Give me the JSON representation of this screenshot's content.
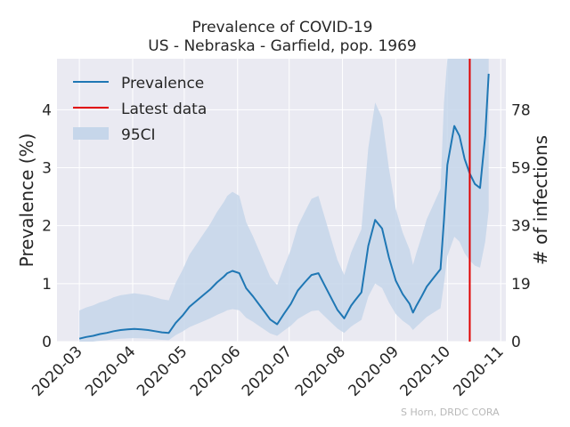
{
  "chart_data": {
    "type": "line",
    "title": "Prevalence of COVID-19",
    "subtitle": "US - Nebraska - Garfield, pop. 1969",
    "ylabel": "Prevalence (%)",
    "y2label": "# of infections",
    "xlim": [
      "2020-02-17",
      "2020-11-04"
    ],
    "ylim": [
      0,
      4.88
    ],
    "yticks": [
      0,
      1,
      2,
      3,
      4
    ],
    "y2ticks": [
      0,
      19,
      39,
      59,
      78
    ],
    "xticks": [
      "2020-03",
      "2020-04",
      "2020-05",
      "2020-06",
      "2020-07",
      "2020-08",
      "2020-09",
      "2020-10",
      "2020-11"
    ],
    "x_tick_dates": [
      "2020-03-01",
      "2020-04-01",
      "2020-05-01",
      "2020-06-01",
      "2020-07-01",
      "2020-08-01",
      "2020-09-01",
      "2020-10-01",
      "2020-11-01"
    ],
    "latest_data_date": "2020-10-14",
    "latest_data_color": "#e00000",
    "line_color": "#1f77b4",
    "band_color": "#c6d6ea",
    "background_color": "#eaeaf2",
    "grid": true,
    "legend_position": "top-left",
    "legend": [
      "Prevalence",
      "Latest data",
      "95CI"
    ],
    "credit": "S Horn, DRDC CORA",
    "series": [
      {
        "name": "Prevalence",
        "x": [
          "2020-03-01",
          "2020-03-05",
          "2020-03-09",
          "2020-03-13",
          "2020-03-17",
          "2020-03-21",
          "2020-03-25",
          "2020-03-29",
          "2020-04-02",
          "2020-04-06",
          "2020-04-10",
          "2020-04-14",
          "2020-04-18",
          "2020-04-22",
          "2020-04-26",
          "2020-04-30",
          "2020-05-04",
          "2020-05-08",
          "2020-05-12",
          "2020-05-16",
          "2020-05-20",
          "2020-05-24",
          "2020-05-26",
          "2020-05-29",
          "2020-06-02",
          "2020-06-06",
          "2020-06-10",
          "2020-06-14",
          "2020-06-17",
          "2020-06-20",
          "2020-06-24",
          "2020-06-28",
          "2020-07-02",
          "2020-07-06",
          "2020-07-10",
          "2020-07-14",
          "2020-07-18",
          "2020-07-22",
          "2020-07-26",
          "2020-07-29",
          "2020-08-02",
          "2020-08-06",
          "2020-08-08",
          "2020-08-12",
          "2020-08-16",
          "2020-08-20",
          "2020-08-24",
          "2020-08-28",
          "2020-09-01",
          "2020-09-05",
          "2020-09-09",
          "2020-09-11",
          "2020-09-13",
          "2020-09-16",
          "2020-09-19",
          "2020-09-23",
          "2020-09-27",
          "2020-09-29",
          "2020-10-01",
          "2020-10-05",
          "2020-10-08",
          "2020-10-11",
          "2020-10-14",
          "2020-10-17",
          "2020-10-20",
          "2020-10-23",
          "2020-10-25"
        ],
        "y": [
          0.05,
          0.08,
          0.1,
          0.13,
          0.15,
          0.18,
          0.2,
          0.21,
          0.22,
          0.21,
          0.2,
          0.18,
          0.16,
          0.15,
          0.32,
          0.45,
          0.6,
          0.7,
          0.8,
          0.9,
          1.02,
          1.12,
          1.18,
          1.22,
          1.18,
          0.92,
          0.78,
          0.62,
          0.5,
          0.38,
          0.3,
          0.48,
          0.65,
          0.88,
          1.02,
          1.15,
          1.18,
          0.95,
          0.72,
          0.55,
          0.4,
          0.62,
          0.7,
          0.85,
          1.65,
          2.1,
          1.95,
          1.45,
          1.05,
          0.82,
          0.65,
          0.5,
          0.62,
          0.78,
          0.95,
          1.1,
          1.25,
          2.1,
          3.05,
          3.72,
          3.55,
          3.15,
          2.9,
          2.72,
          2.65,
          3.55,
          4.62
        ]
      }
    ]
  }
}
